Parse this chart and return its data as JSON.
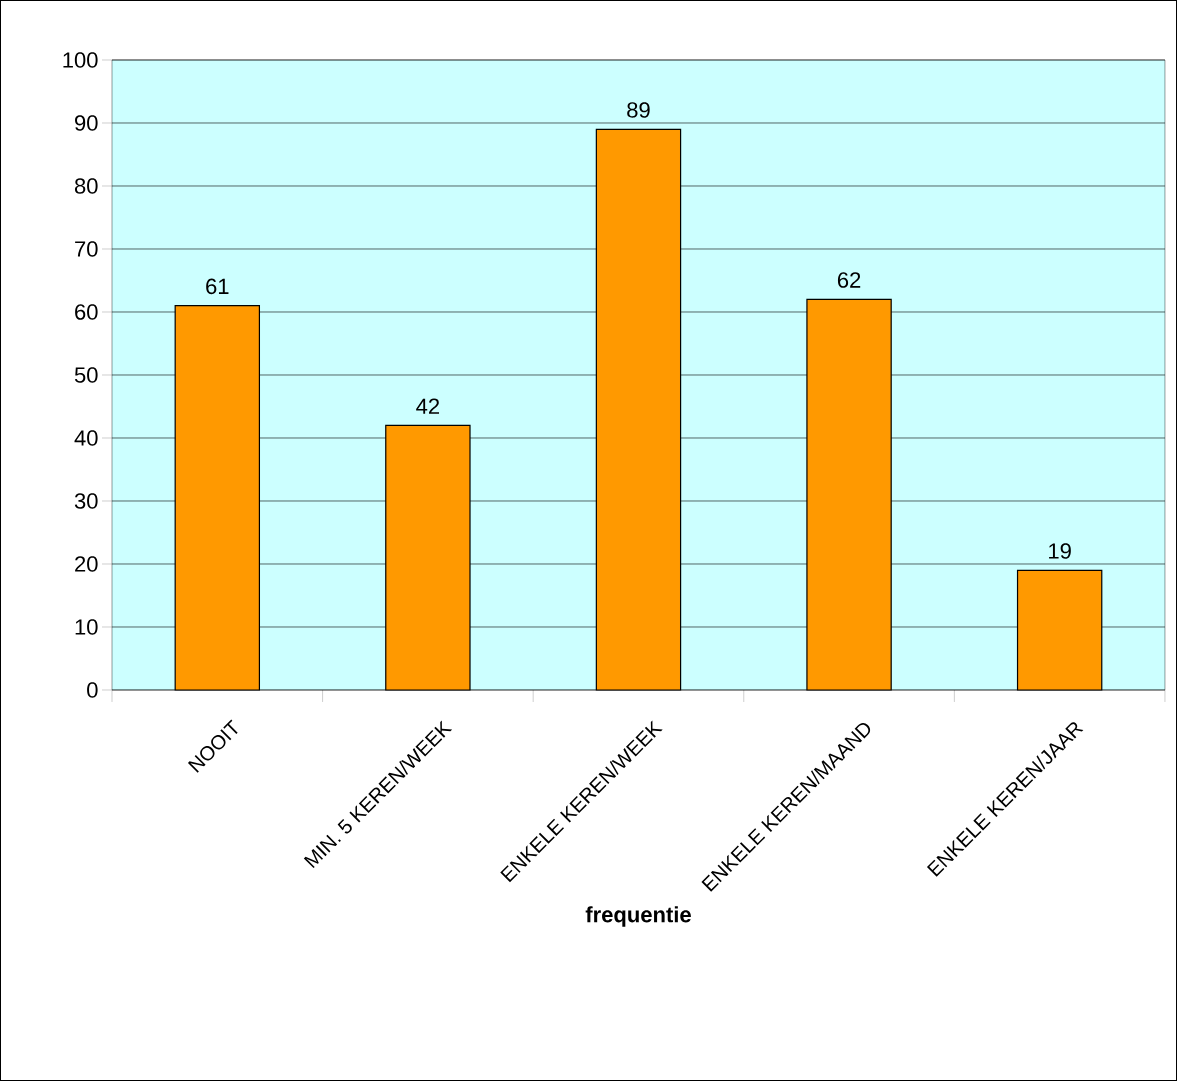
{
  "chart_data": {
    "type": "bar",
    "xlabel": "frequentie",
    "categories": [
      "NOOIT",
      "MIN. 5 KEREN/WEEK",
      "ENKELE KEREN/WEEK",
      "ENKELE KEREN/MAAND",
      "ENKELE KEREN/JAAR"
    ],
    "values": [
      61,
      42,
      89,
      62,
      19
    ],
    "color": "#ff9900",
    "ylim": [
      0,
      100
    ],
    "yticks": [
      0,
      10,
      20,
      30,
      40,
      50,
      60,
      70,
      80,
      90,
      100
    ],
    "grid": "y",
    "data_labels": true
  }
}
